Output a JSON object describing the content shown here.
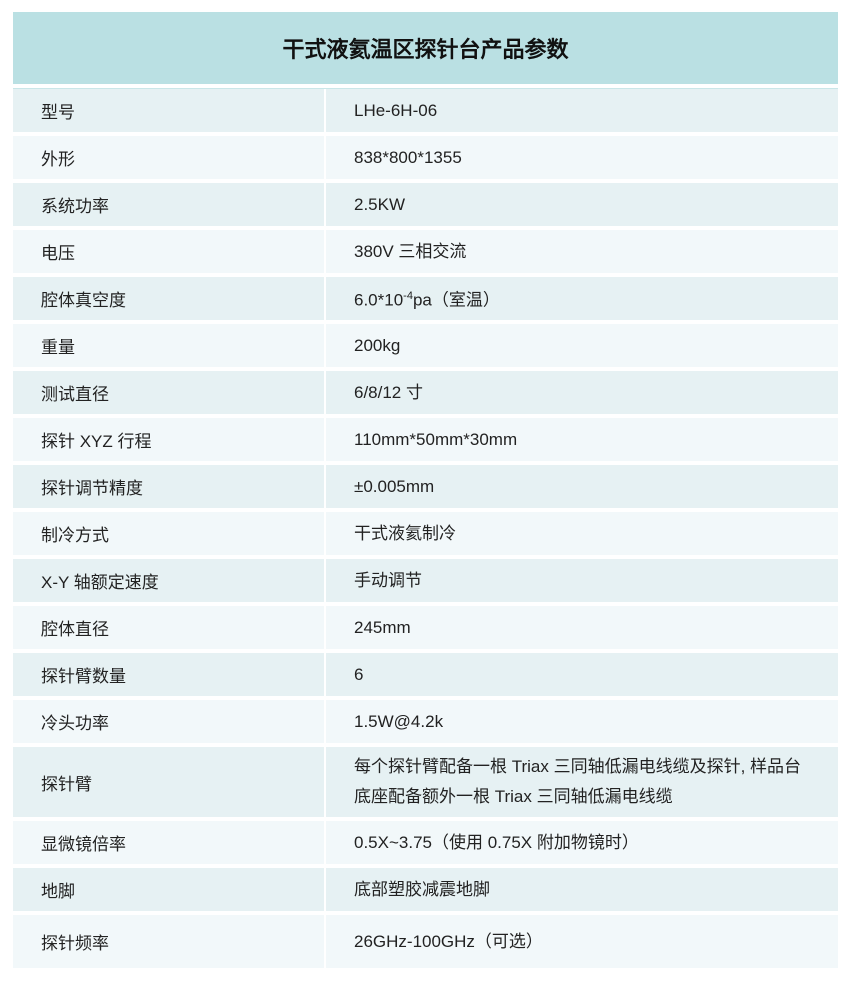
{
  "title": "干式液氦温区探针台产品参数",
  "rows": [
    {
      "label": "型号",
      "value": "LHe-6H-06"
    },
    {
      "label": "外形",
      "value": "838*800*1355"
    },
    {
      "label": "系统功率",
      "value": "2.5KW"
    },
    {
      "label": "电压",
      "value": "380V 三相交流"
    },
    {
      "label": "腔体真空度",
      "value_pre": "6.0*10",
      "value_sup": "-4",
      "value_post": "pa（室温）"
    },
    {
      "label": "重量",
      "value": "200kg"
    },
    {
      "label": "测试直径",
      "value": "6/8/12 寸"
    },
    {
      "label": "探针 XYZ 行程",
      "value": "110mm*50mm*30mm"
    },
    {
      "label": "探针调节精度",
      "value": "±0.005mm"
    },
    {
      "label": "制冷方式",
      "value": "干式液氦制冷"
    },
    {
      "label": "X-Y 轴额定速度",
      "value": "手动调节"
    },
    {
      "label": "腔体直径",
      "value": "245mm"
    },
    {
      "label": "探针臂数量",
      "value": "6"
    },
    {
      "label": "冷头功率",
      "value": "1.5W@4.2k"
    },
    {
      "label": "探针臂",
      "value": "每个探针臂配备一根 Triax 三同轴低漏电线缆及探针, 样品台底座配备额外一根 Triax 三同轴低漏电线缆"
    },
    {
      "label": "显微镜倍率",
      "value": "0.5X~3.75（使用 0.75X 附加物镜时）"
    },
    {
      "label": "地脚",
      "value": "底部塑胶减震地脚"
    },
    {
      "label": "探针频率",
      "value": "26GHz-100GHz（可选）"
    }
  ],
  "colors": {
    "header": "#bae0e3",
    "row_odd": "#e6f1f3",
    "row_even": "#f2f8fa"
  }
}
